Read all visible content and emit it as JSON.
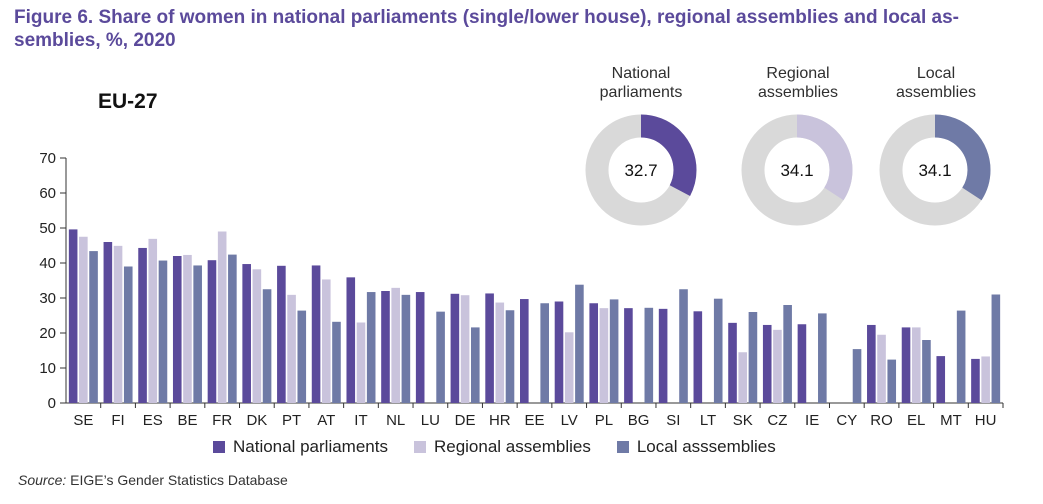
{
  "figure": {
    "title": "Figure 6. Share of women in national parliaments (single/lower house), regional assemblies and local as-semblies, %, 2020",
    "title_line1": "Figure 6. Share of women in national parliaments (single/lower house), regional assemblies and local as-",
    "title_line2": "semblies, %, 2020",
    "region_label": "EU-27",
    "source_prefix": "Source:",
    "source_text": " EIGE’s Gender Statistics Database"
  },
  "colors": {
    "national": "#5b4a9b",
    "regional": "#c9c3dc",
    "local": "#6f7aa6",
    "donut_rest": "#d9d9d9",
    "title": "#5b4a9b"
  },
  "donuts": [
    {
      "title_line1": "National",
      "title_line2": "parliaments",
      "value": 32.7,
      "label": "32.7",
      "color_key": "national"
    },
    {
      "title_line1": "Regional",
      "title_line2": "assemblies",
      "value": 34.1,
      "label": "34.1",
      "color_key": "regional"
    },
    {
      "title_line1": "Local",
      "title_line2": "assemblies",
      "value": 34.1,
      "label": "34.1",
      "color_key": "local"
    }
  ],
  "legend": [
    {
      "label": "National parliaments",
      "color_key": "national"
    },
    {
      "label": "Regional assemblies",
      "color_key": "regional"
    },
    {
      "label": "Local asssemblies",
      "color_key": "local"
    }
  ],
  "chart_data": {
    "type": "bar",
    "ylim": [
      0,
      70
    ],
    "yticks": [
      0,
      10,
      20,
      30,
      40,
      50,
      60,
      70
    ],
    "legend_position": "bottom",
    "grid": false,
    "categories": [
      "SE",
      "FI",
      "ES",
      "BE",
      "FR",
      "DK",
      "PT",
      "AT",
      "IT",
      "NL",
      "LU",
      "DE",
      "HR",
      "EE",
      "LV",
      "PL",
      "BG",
      "SI",
      "LT",
      "SK",
      "CZ",
      "IE",
      "CY",
      "RO",
      "EL",
      "MT",
      "HU"
    ],
    "series": [
      {
        "name": "National parliaments",
        "color_key": "national",
        "values": [
          49.6,
          46.0,
          44.3,
          42.0,
          40.8,
          39.7,
          39.2,
          39.3,
          35.9,
          32.0,
          31.7,
          31.2,
          31.3,
          29.7,
          29.0,
          28.5,
          27.1,
          26.9,
          26.2,
          22.9,
          22.3,
          22.5,
          null,
          22.3,
          21.6,
          13.4,
          12.6
        ]
      },
      {
        "name": "Regional assemblies",
        "color_key": "regional",
        "values": [
          47.5,
          44.9,
          46.9,
          42.3,
          49.0,
          38.2,
          30.9,
          35.3,
          23.0,
          32.9,
          null,
          30.8,
          28.7,
          null,
          20.2,
          27.1,
          null,
          null,
          null,
          14.5,
          20.9,
          null,
          null,
          19.5,
          21.6,
          null,
          13.3
        ]
      },
      {
        "name": "Local asssemblies",
        "color_key": "local",
        "values": [
          43.4,
          39.0,
          40.7,
          39.3,
          42.4,
          32.5,
          26.4,
          23.2,
          31.7,
          30.9,
          26.1,
          21.6,
          26.5,
          28.5,
          33.8,
          29.6,
          27.2,
          32.5,
          29.8,
          26.0,
          28.0,
          25.6,
          15.4,
          12.4,
          18.0,
          26.4,
          31.0
        ]
      }
    ]
  }
}
